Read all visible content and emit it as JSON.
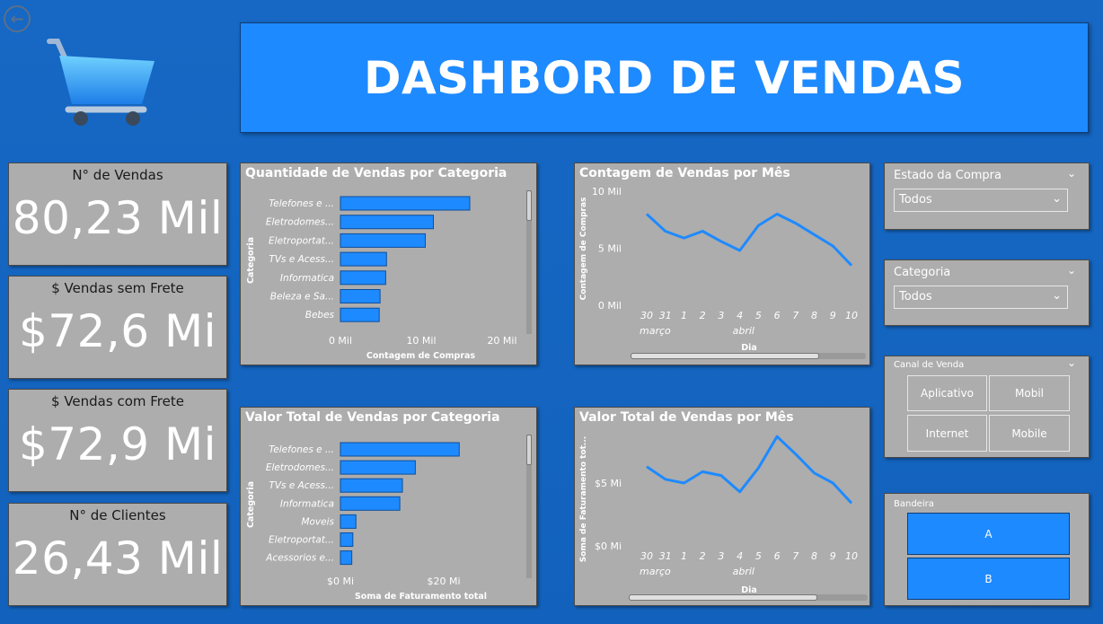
{
  "header": {
    "title": "DASHBORD DE VENDAS",
    "back_icon": "back-arrow-icon",
    "logo_icon": "shopping-cart-icon"
  },
  "kpis": [
    {
      "title": "N° de Vendas",
      "value": "80,23 Mil"
    },
    {
      "title": "$ Vendas sem Frete",
      "value": "$72,6 Mi"
    },
    {
      "title": "$ Vendas com Frete",
      "value": "$72,9 Mi"
    },
    {
      "title": "N° de Clientes",
      "value": "26,43 Mil"
    }
  ],
  "slicers": {
    "estado": {
      "title": "Estado da Compra",
      "selected": "Todos"
    },
    "categoria": {
      "title": "Categoria",
      "selected": "Todos"
    },
    "canal": {
      "title": "Canal de Venda",
      "options": [
        "Aplicativo",
        "Mobil",
        "Internet",
        "Mobile"
      ]
    },
    "bandeira": {
      "title": "Bandeira",
      "options": [
        "A",
        "B"
      ]
    }
  },
  "chart_data": [
    {
      "type": "bar",
      "orientation": "horizontal",
      "title": "Quantidade de Vendas por Categoria",
      "categories": [
        "Telefones e ...",
        "Eletrodomes...",
        "Eletroportat...",
        "TVs e Acess...",
        "Informatica",
        "Beleza e Sa...",
        "Bebes"
      ],
      "values": [
        16,
        11.5,
        10.5,
        5.7,
        5.6,
        4.9,
        4.8
      ],
      "xlabel": "Contagem de Compras",
      "ylabel": "Categoria",
      "xlim": [
        0,
        23
      ],
      "ticks": [
        {
          "value": 0,
          "label": "0 Mil"
        },
        {
          "value": 10,
          "label": "10 Mil"
        },
        {
          "value": 20,
          "label": "20 Mil"
        }
      ]
    },
    {
      "type": "line",
      "title": "Contagem de Vendas por Mês",
      "x": [
        "30",
        "31",
        "1",
        "2",
        "3",
        "4",
        "5",
        "6",
        "7",
        "8",
        "9",
        "10"
      ],
      "months": [
        {
          "label": "março",
          "at": 0
        },
        {
          "label": "abril",
          "at": 5
        }
      ],
      "values": [
        8,
        6.5,
        5.9,
        6.5,
        5.6,
        4.8,
        7,
        8,
        7.2,
        6.2,
        5.2,
        3.5
      ],
      "xlabel": "Dia",
      "ylabel": "Contagem de Compras",
      "ylim": [
        0,
        10
      ],
      "ticks": [
        {
          "value": 0,
          "label": "0 Mil"
        },
        {
          "value": 5,
          "label": "5 Mil"
        },
        {
          "value": 10,
          "label": "10 Mil"
        }
      ]
    },
    {
      "type": "bar",
      "orientation": "horizontal",
      "title": "Valor Total de Vendas por Categoria",
      "categories": [
        "Telefones e ...",
        "Eletrodomes...",
        "TVs e Acess...",
        "Informatica",
        "Moveis",
        "Eletroportat...",
        "Acessorios e..."
      ],
      "values": [
        23,
        14.5,
        12,
        11.5,
        3,
        2.4,
        2.2
      ],
      "xlabel": "Soma de Faturamento total",
      "ylabel": "Categoria",
      "xlim": [
        0,
        36
      ],
      "ticks": [
        {
          "value": 0,
          "label": "$0 Mi"
        },
        {
          "value": 20,
          "label": "$20 Mi"
        }
      ]
    },
    {
      "type": "line",
      "title": "Valor Total de Vendas por Mês",
      "x": [
        "30",
        "31",
        "1",
        "2",
        "3",
        "4",
        "5",
        "6",
        "7",
        "8",
        "9",
        "10"
      ],
      "months": [
        {
          "label": "março",
          "at": 0
        },
        {
          "label": "abril",
          "at": 5
        }
      ],
      "values": [
        6.3,
        5.3,
        5,
        5.9,
        5.6,
        4.3,
        6.2,
        8.7,
        7.3,
        5.8,
        5,
        3.4
      ],
      "xlabel": "Dia",
      "ylabel": "Soma de Faturamento tot...",
      "ylim": [
        0,
        10
      ],
      "ticks": [
        {
          "value": 0,
          "label": "$0 Mi"
        },
        {
          "value": 5,
          "label": "$5 Mi"
        }
      ]
    }
  ],
  "colors": {
    "accent": "#1e8aff",
    "panel": "#adadad",
    "background": "#1565c0",
    "text": "#ffffff"
  }
}
